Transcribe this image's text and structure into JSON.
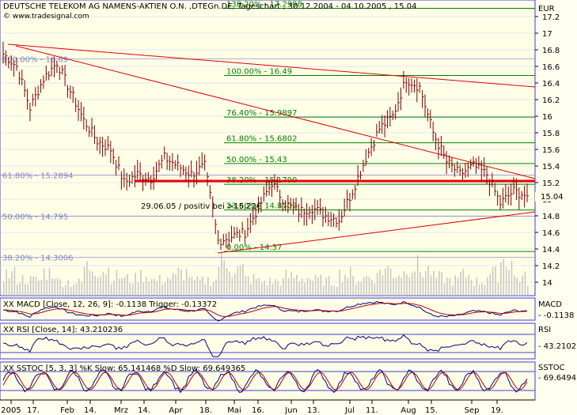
{
  "header": {
    "title": "DEUTSCHE TELEKOM AG NAMENS-AKTIEN O.N. ,DTEGn.DE, Tageschart , 30.12.2004 - 04.10.2005 , 15.04",
    "source": "© www.tradesignal.com",
    "currency": "EUR"
  },
  "colors": {
    "background": "#ffffe7",
    "grid": "#3b3bdc",
    "price": "#800000",
    "trendline": "#dd0000",
    "fib_line": "#008000",
    "fib_label": "#008000",
    "fib_left_label": "#8080c8",
    "volume": "#c8c8c8",
    "indicator_line": "#00007a",
    "indicator_line2": "#b00000"
  },
  "chart_data": [
    {
      "type": "line",
      "name": "price",
      "title": "DEUTSCHE TELEKOM AG NAMENS-AKTIEN O.N. ,DTEGn.DE, Tageschart , 30.12.2004 - 04.10.2005 , 15.04",
      "ylabel": "EUR",
      "ylim": [
        13.8,
        17.6
      ],
      "y_ticks": [
        "14",
        "14.2",
        "14.4",
        "14.6",
        "14.8",
        "15",
        "15.2",
        "15.4",
        "15.6",
        "15.8",
        "16",
        "16.2",
        "16.4",
        "16.6",
        "16.8",
        "17",
        "17.2"
      ],
      "x_ticks": [
        "2005",
        "17.",
        "Feb",
        "14.",
        "Mrz",
        "14.",
        "Apr",
        "18.",
        "Mai",
        "16.",
        "Jun",
        "13.",
        "Jul",
        "11.",
        "Aug",
        "15.",
        "Sep",
        "19."
      ],
      "last_value": "15.04",
      "series": [
        {
          "name": "Close",
          "x": [
            "03.01.05",
            "10.01.05",
            "17.01.05",
            "24.01.05",
            "31.01.05",
            "07.02.05",
            "14.02.05",
            "21.02.05",
            "28.02.05",
            "07.03.05",
            "14.03.05",
            "21.03.05",
            "28.03.05",
            "04.04.05",
            "11.04.05",
            "18.04.05",
            "25.04.05",
            "02.05.05",
            "09.05.05",
            "16.05.05",
            "23.05.05",
            "30.05.05",
            "06.06.05",
            "13.06.05",
            "20.06.05",
            "27.06.05",
            "04.07.05",
            "11.07.05",
            "18.07.05",
            "25.07.05",
            "01.08.05",
            "08.08.05",
            "15.08.05",
            "22.08.05",
            "29.08.05",
            "05.09.05",
            "12.09.05",
            "19.09.05",
            "26.09.05",
            "04.10.05"
          ],
          "values": [
            16.75,
            16.6,
            16.1,
            16.45,
            16.65,
            16.3,
            15.95,
            15.7,
            15.6,
            15.2,
            15.3,
            15.25,
            15.5,
            15.4,
            15.3,
            15.4,
            14.5,
            14.55,
            14.6,
            14.9,
            15.2,
            14.95,
            14.85,
            14.9,
            14.8,
            14.75,
            15.1,
            15.5,
            15.85,
            16.0,
            16.45,
            16.35,
            15.8,
            15.45,
            15.3,
            15.4,
            15.3,
            14.95,
            15.1,
            15.04
          ]
        }
      ],
      "volume": [
        18,
        14,
        13,
        20,
        12,
        11,
        24,
        22,
        16,
        14,
        17,
        13,
        15,
        19,
        12,
        13,
        28,
        22,
        14,
        12,
        12,
        16,
        15,
        13,
        12,
        18,
        14,
        16,
        22,
        19,
        25,
        21,
        15,
        13,
        17,
        12,
        18,
        30,
        15,
        12
      ]
    },
    {
      "type": "line",
      "name": "MACD",
      "title": "XX MACD [Close, 12, 26, 9]: -0.1138 Trigger: -0.13372",
      "ylabel": "MACD",
      "last_value": "- -0.1138"
    },
    {
      "type": "line",
      "name": "RSI",
      "title": "XX RSI [Close, 14]: 43.210236",
      "ylabel": "RSI",
      "last_value": "- 43.2102"
    },
    {
      "type": "line",
      "name": "SSTOC",
      "title": "XX SSTOC [5, 3, 3] %K Slow: 65.141468 %D Slow: 69.649365",
      "ylabel": "SSTOC",
      "last_value": "- 69.6494"
    }
  ],
  "fibonacci_right": [
    {
      "label": "138.20% - 17.2998",
      "value": 17.2998
    },
    {
      "label": "100.00% - 16.49",
      "value": 16.49
    },
    {
      "label": "76.40% - 15.9897",
      "value": 15.9897
    },
    {
      "label": "61.80% - 15.6802",
      "value": 15.6802
    },
    {
      "label": "50.00% - 15.43",
      "value": 15.43
    },
    {
      "label": "38.20% - 15.1799",
      "value": 15.1799
    },
    {
      "label": "23.60% - 14.8703",
      "value": 14.8703
    },
    {
      "label": "0.00% - 14.37",
      "value": 14.37
    }
  ],
  "fibonacci_left": [
    {
      "label": "100.00% - 16.69",
      "value": 16.69
    },
    {
      "label": "61.80% - 15.2894",
      "value": 15.2894
    },
    {
      "label": "50.00% - 14.795",
      "value": 14.795
    },
    {
      "label": "38.20% - 14.3006",
      "value": 14.3006
    }
  ],
  "annotation": "29.06.05 / positiv bei >15,22€"
}
